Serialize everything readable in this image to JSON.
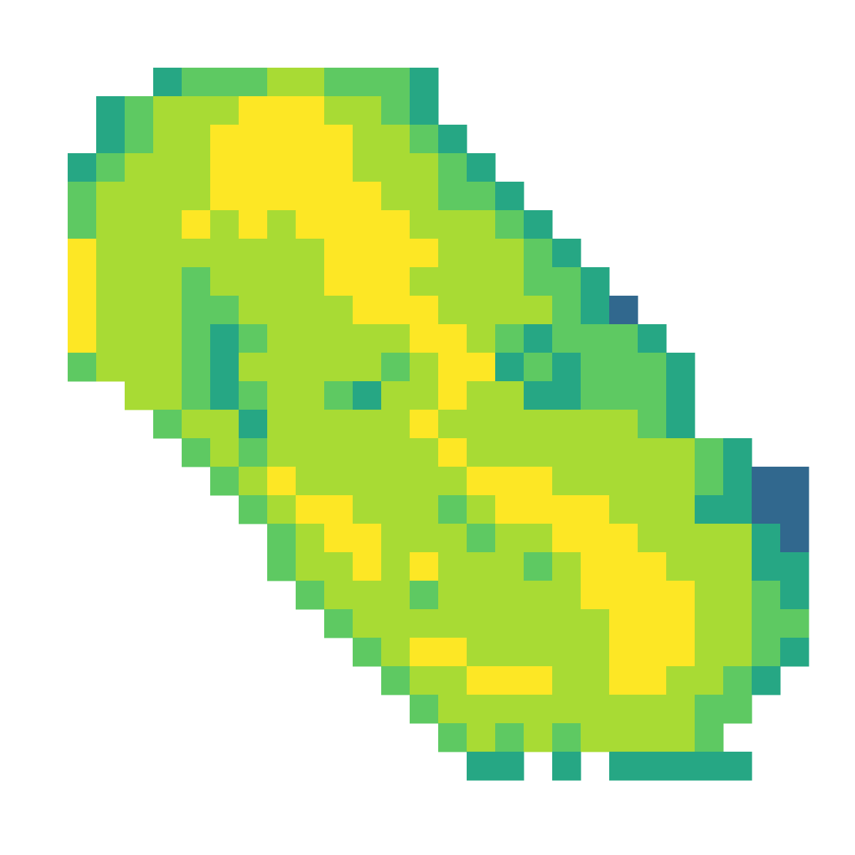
{
  "chart_data": {
    "type": "heatmap",
    "colors": [
      "#482878",
      "#31688e",
      "#26a784",
      "#5ec962",
      "#a8db34",
      "#fde725"
    ],
    "z": [
      [
        null,
        null,
        null,
        3,
        4,
        4,
        4,
        5,
        5,
        4,
        4,
        4,
        3,
        null,
        null,
        null,
        null,
        null,
        null,
        null,
        null,
        null,
        null,
        null,
        null,
        null
      ],
      [
        null,
        3,
        4,
        5,
        5,
        5,
        6,
        6,
        6,
        5,
        5,
        4,
        3,
        null,
        null,
        null,
        null,
        null,
        null,
        null,
        null,
        null,
        null,
        null,
        null,
        null
      ],
      [
        null,
        3,
        4,
        5,
        5,
        6,
        6,
        6,
        6,
        6,
        5,
        5,
        4,
        3,
        null,
        null,
        null,
        null,
        null,
        null,
        null,
        null,
        null,
        null,
        null,
        null
      ],
      [
        3,
        4,
        5,
        5,
        5,
        6,
        6,
        6,
        6,
        6,
        5,
        5,
        5,
        4,
        3,
        null,
        null,
        null,
        null,
        null,
        null,
        null,
        null,
        null,
        null,
        null
      ],
      [
        4,
        5,
        5,
        5,
        5,
        6,
        6,
        6,
        6,
        6,
        6,
        5,
        5,
        4,
        4,
        3,
        null,
        null,
        null,
        null,
        null,
        null,
        null,
        null,
        null,
        null
      ],
      [
        4,
        5,
        5,
        5,
        6,
        5,
        6,
        5,
        6,
        6,
        6,
        6,
        5,
        5,
        5,
        4,
        3,
        null,
        null,
        null,
        null,
        null,
        null,
        null,
        null,
        null
      ],
      [
        6,
        5,
        5,
        5,
        5,
        5,
        5,
        5,
        5,
        6,
        6,
        6,
        6,
        5,
        5,
        5,
        4,
        3,
        null,
        null,
        null,
        null,
        null,
        null,
        null,
        null
      ],
      [
        6,
        5,
        5,
        5,
        4,
        5,
        5,
        5,
        5,
        6,
        6,
        6,
        5,
        5,
        5,
        5,
        4,
        4,
        3,
        null,
        null,
        null,
        null,
        null,
        null,
        null
      ],
      [
        6,
        5,
        5,
        5,
        4,
        4,
        5,
        5,
        5,
        5,
        6,
        6,
        6,
        5,
        5,
        5,
        5,
        4,
        3,
        2,
        null,
        null,
        null,
        null,
        null,
        null
      ],
      [
        6,
        5,
        5,
        5,
        4,
        3,
        4,
        5,
        5,
        5,
        5,
        5,
        6,
        6,
        5,
        4,
        3,
        4,
        4,
        4,
        3,
        null,
        null,
        null,
        null,
        null
      ],
      [
        4,
        5,
        5,
        5,
        4,
        3,
        5,
        5,
        5,
        5,
        5,
        4,
        5,
        6,
        6,
        3,
        4,
        3,
        4,
        4,
        4,
        3,
        null,
        null,
        null,
        null
      ],
      [
        null,
        null,
        5,
        5,
        4,
        3,
        4,
        5,
        5,
        4,
        3,
        5,
        5,
        6,
        5,
        5,
        3,
        3,
        4,
        4,
        4,
        3,
        null,
        null,
        null,
        null
      ],
      [
        null,
        null,
        null,
        4,
        5,
        5,
        3,
        5,
        5,
        5,
        5,
        5,
        6,
        5,
        5,
        5,
        5,
        5,
        5,
        5,
        4,
        3,
        null,
        null,
        null,
        null
      ],
      [
        null,
        null,
        null,
        null,
        4,
        5,
        4,
        5,
        5,
        5,
        5,
        5,
        5,
        6,
        5,
        5,
        5,
        5,
        5,
        5,
        5,
        5,
        4,
        3,
        null,
        null
      ],
      [
        null,
        null,
        null,
        null,
        null,
        4,
        5,
        6,
        5,
        5,
        5,
        5,
        5,
        5,
        6,
        6,
        6,
        5,
        5,
        5,
        5,
        5,
        4,
        3,
        2,
        2
      ],
      [
        null,
        null,
        null,
        null,
        null,
        null,
        4,
        5,
        6,
        6,
        5,
        5,
        5,
        4,
        5,
        6,
        6,
        6,
        6,
        5,
        5,
        5,
        3,
        3,
        2,
        2
      ],
      [
        null,
        null,
        null,
        null,
        null,
        null,
        null,
        4,
        5,
        6,
        6,
        5,
        5,
        5,
        4,
        5,
        5,
        6,
        6,
        6,
        5,
        5,
        5,
        5,
        3,
        2
      ],
      [
        null,
        null,
        null,
        null,
        null,
        null,
        null,
        4,
        5,
        5,
        6,
        5,
        6,
        5,
        5,
        5,
        4,
        5,
        6,
        6,
        6,
        5,
        5,
        5,
        3,
        3
      ],
      [
        null,
        null,
        null,
        null,
        null,
        null,
        null,
        null,
        4,
        5,
        5,
        5,
        4,
        5,
        5,
        5,
        5,
        5,
        6,
        6,
        6,
        6,
        5,
        5,
        4,
        3
      ],
      [
        null,
        null,
        null,
        null,
        null,
        null,
        null,
        null,
        null,
        4,
        5,
        5,
        5,
        5,
        5,
        5,
        5,
        5,
        5,
        6,
        6,
        6,
        5,
        5,
        4,
        4
      ],
      [
        null,
        null,
        null,
        null,
        null,
        null,
        null,
        null,
        null,
        null,
        4,
        5,
        6,
        6,
        5,
        5,
        5,
        5,
        5,
        6,
        6,
        6,
        5,
        5,
        4,
        3
      ],
      [
        null,
        null,
        null,
        null,
        null,
        null,
        null,
        null,
        null,
        null,
        null,
        4,
        5,
        5,
        6,
        6,
        6,
        5,
        5,
        6,
        6,
        5,
        5,
        4,
        3,
        null
      ],
      [
        null,
        null,
        null,
        null,
        null,
        null,
        null,
        null,
        null,
        null,
        null,
        null,
        4,
        5,
        5,
        5,
        5,
        5,
        5,
        5,
        5,
        5,
        4,
        4,
        null,
        null
      ],
      [
        null,
        null,
        null,
        null,
        null,
        null,
        null,
        null,
        null,
        null,
        null,
        null,
        null,
        4,
        5,
        4,
        5,
        4,
        5,
        5,
        5,
        5,
        4,
        null,
        null,
        null
      ],
      [
        null,
        null,
        null,
        null,
        null,
        null,
        null,
        null,
        null,
        null,
        null,
        null,
        null,
        null,
        3,
        3,
        null,
        3,
        null,
        3,
        3,
        3,
        3,
        3,
        null,
        null
      ]
    ]
  }
}
